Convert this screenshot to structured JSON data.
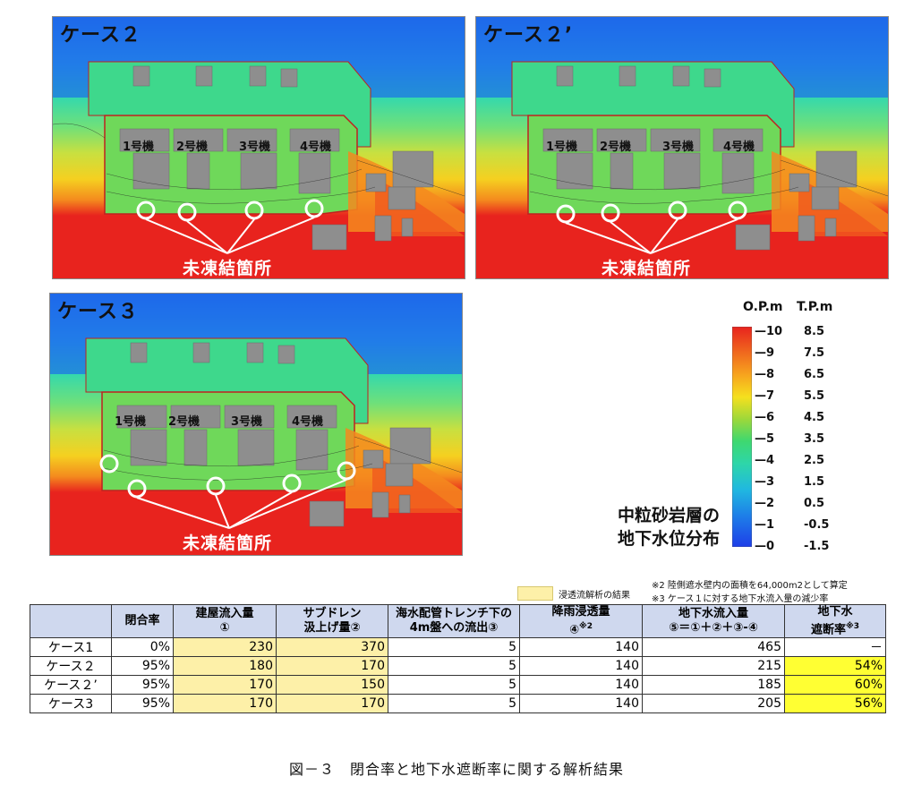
{
  "panels": [
    {
      "title": "ケース２",
      "units": [
        "1号機",
        "2号機",
        "3号機",
        "4号機"
      ],
      "callout": "未凍結箇所"
    },
    {
      "title": "ケース２’",
      "units": [
        "1号機",
        "2号機",
        "3号機",
        "4号機"
      ],
      "callout": "未凍結箇所"
    },
    {
      "title": "ケース３",
      "units": [
        "1号機",
        "2号機",
        "3号機",
        "4号機"
      ],
      "callout": "未凍結箇所"
    }
  ],
  "legend": {
    "header_op": "O.P.m",
    "header_tp": "T.P.m",
    "op_ticks": [
      "10",
      "9",
      "8",
      "7",
      "6",
      "5",
      "4",
      "3",
      "2",
      "1",
      "0"
    ],
    "tp_ticks": [
      "8.5",
      "7.5",
      "6.5",
      "5.5",
      "4.5",
      "3.5",
      "2.5",
      "1.5",
      "0.5",
      "-0.5",
      "-1.5"
    ],
    "caption_line1": "中粒砂岩層の",
    "caption_line2": "地下水位分布",
    "colors": [
      "#e8231e",
      "#f06a1e",
      "#f7a51e",
      "#f5e01e",
      "#9dd83a",
      "#3ed870",
      "#2ed6a8",
      "#20b8e0",
      "#1e7ee8",
      "#1e3ee8"
    ]
  },
  "notes": {
    "swatch_label": "浸透流解析の結果",
    "note2": "※2 陸側遮水壁内の面積を64,000m2として算定",
    "note3": "※3 ケース１に対する地下水流入量の減少率"
  },
  "table": {
    "headers": {
      "closure": "閉合率",
      "building_l1": "建屋流入量",
      "building_l2": "①",
      "subdrain_l1": "サブドレン",
      "subdrain_l2": "汲上げ量②",
      "trench_l1": "海水配管トレンチ下の",
      "trench_l2": "4m盤への流出③",
      "rain_l1": "降雨浸透量",
      "rain_l2": "④",
      "rain_sup": "※2",
      "inflow_l1": "地下水流入量",
      "inflow_l2": "⑤＝①＋②＋③-④",
      "cut_l1": "地下水",
      "cut_l2": "遮断率",
      "cut_sup": "※3"
    },
    "rows": [
      {
        "case": "ケース1",
        "closure": "0%",
        "building": "230",
        "subdrain": "370",
        "trench": "5",
        "rain": "140",
        "inflow": "465",
        "cut": "－"
      },
      {
        "case": "ケース２",
        "closure": "95%",
        "building": "180",
        "subdrain": "170",
        "trench": "5",
        "rain": "140",
        "inflow": "215",
        "cut": "54%"
      },
      {
        "case": "ケース２’",
        "closure": "95%",
        "building": "170",
        "subdrain": "150",
        "trench": "5",
        "rain": "140",
        "inflow": "185",
        "cut": "60%"
      },
      {
        "case": "ケース3",
        "closure": "95%",
        "building": "170",
        "subdrain": "170",
        "trench": "5",
        "rain": "140",
        "inflow": "205",
        "cut": "56%"
      }
    ]
  },
  "caption": "図－３　閉合率と地下水遮断率に関する解析結果"
}
